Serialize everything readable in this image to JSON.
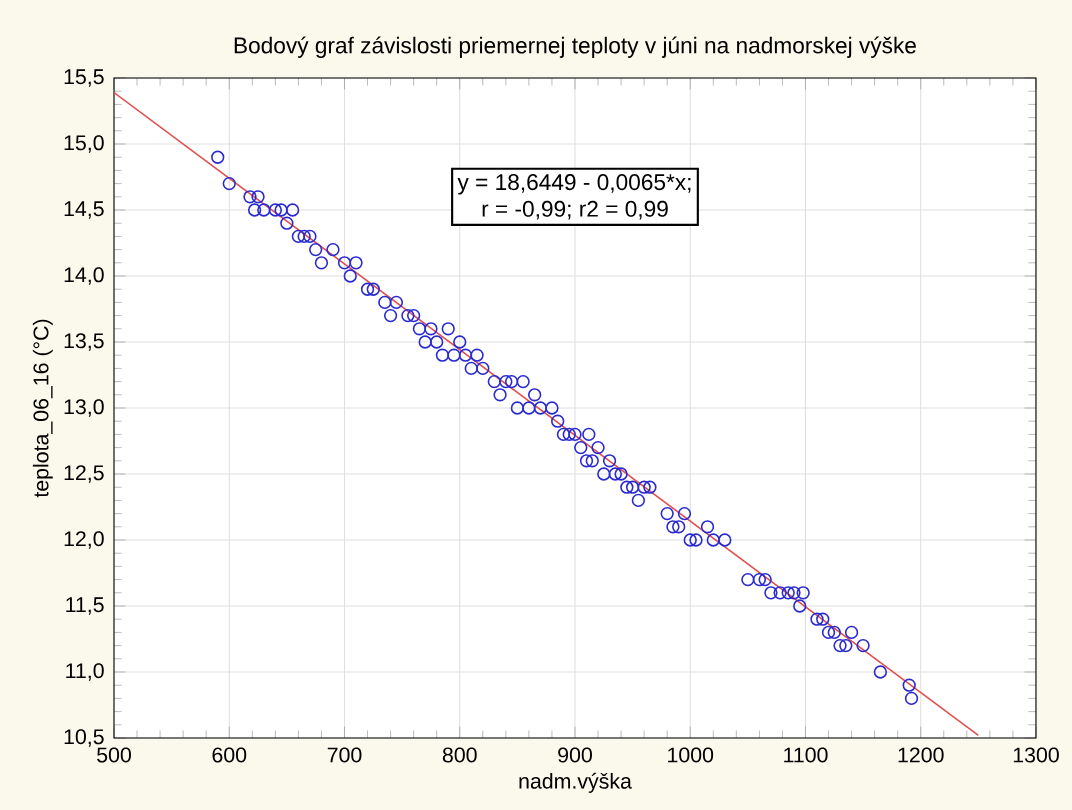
{
  "chart_data": {
    "type": "scatter",
    "title": "Bodový graf závislosti priemernej teploty v júni na nadmorskej výške",
    "xlabel": "nadm.výška",
    "ylabel": "teplota_06_16 (°C)",
    "annotations": [
      "y = 18,6449 - 0,0065*x;",
      "r = -0,99; r2 = 0,99"
    ],
    "xlim": [
      500,
      1300
    ],
    "xticks": [
      500,
      600,
      700,
      800,
      900,
      1000,
      1100,
      1200,
      1300
    ],
    "ylim": [
      10.5,
      15.5
    ],
    "yticks": [
      {
        "value": 10.5,
        "label": "10,5"
      },
      {
        "value": 11.0,
        "label": "11,0"
      },
      {
        "value": 11.5,
        "label": "11,5"
      },
      {
        "value": 12.0,
        "label": "12,0"
      },
      {
        "value": 12.5,
        "label": "12,5"
      },
      {
        "value": 13.0,
        "label": "13,0"
      },
      {
        "value": 13.5,
        "label": "13,5"
      },
      {
        "value": 14.0,
        "label": "14,0"
      },
      {
        "value": 14.5,
        "label": "14,5"
      },
      {
        "value": 15.0,
        "label": "15,0"
      },
      {
        "value": 15.5,
        "label": "15,5"
      }
    ],
    "grid": true,
    "series": [
      {
        "color": "#2a2ad0",
        "marker": "circle",
        "x": [
          590,
          600,
          618,
          622,
          625,
          630,
          640,
          645,
          650,
          655,
          660,
          665,
          670,
          675,
          680,
          690,
          700,
          705,
          710,
          720,
          725,
          735,
          740,
          745,
          755,
          760,
          765,
          770,
          775,
          780,
          785,
          790,
          795,
          800,
          805,
          810,
          815,
          820,
          830,
          835,
          840,
          845,
          850,
          855,
          860,
          865,
          870,
          880,
          885,
          890,
          895,
          900,
          905,
          910,
          912,
          915,
          920,
          925,
          930,
          935,
          940,
          945,
          950,
          955,
          960,
          965,
          980,
          985,
          990,
          995,
          1000,
          1005,
          1015,
          1020,
          1030,
          1050,
          1060,
          1065,
          1070,
          1078,
          1085,
          1090,
          1095,
          1098,
          1110,
          1115,
          1120,
          1125,
          1130,
          1135,
          1140,
          1150,
          1165,
          1190,
          1192
        ],
        "values": [
          14.9,
          14.7,
          14.6,
          14.5,
          14.6,
          14.5,
          14.5,
          14.5,
          14.4,
          14.5,
          14.3,
          14.3,
          14.3,
          14.2,
          14.1,
          14.2,
          14.1,
          14.0,
          14.1,
          13.9,
          13.9,
          13.8,
          13.7,
          13.8,
          13.7,
          13.7,
          13.6,
          13.5,
          13.6,
          13.5,
          13.4,
          13.6,
          13.4,
          13.5,
          13.4,
          13.3,
          13.4,
          13.3,
          13.2,
          13.1,
          13.2,
          13.2,
          13.0,
          13.2,
          13.0,
          13.1,
          13.0,
          13.0,
          12.9,
          12.8,
          12.8,
          12.8,
          12.7,
          12.6,
          12.8,
          12.6,
          12.7,
          12.5,
          12.6,
          12.5,
          12.5,
          12.4,
          12.4,
          12.3,
          12.4,
          12.4,
          12.2,
          12.1,
          12.1,
          12.2,
          12.0,
          12.0,
          12.1,
          12.0,
          12.0,
          11.7,
          11.7,
          11.7,
          11.6,
          11.6,
          11.6,
          11.6,
          11.5,
          11.6,
          11.4,
          11.4,
          11.3,
          11.3,
          11.2,
          11.2,
          11.3,
          11.2,
          11.0,
          10.9,
          10.8
        ]
      },
      {
        "type": "line",
        "marker": "none",
        "color": "#e05050",
        "x": [
          500,
          1250
        ],
        "values": [
          15.39,
          10.52
        ]
      }
    ]
  }
}
